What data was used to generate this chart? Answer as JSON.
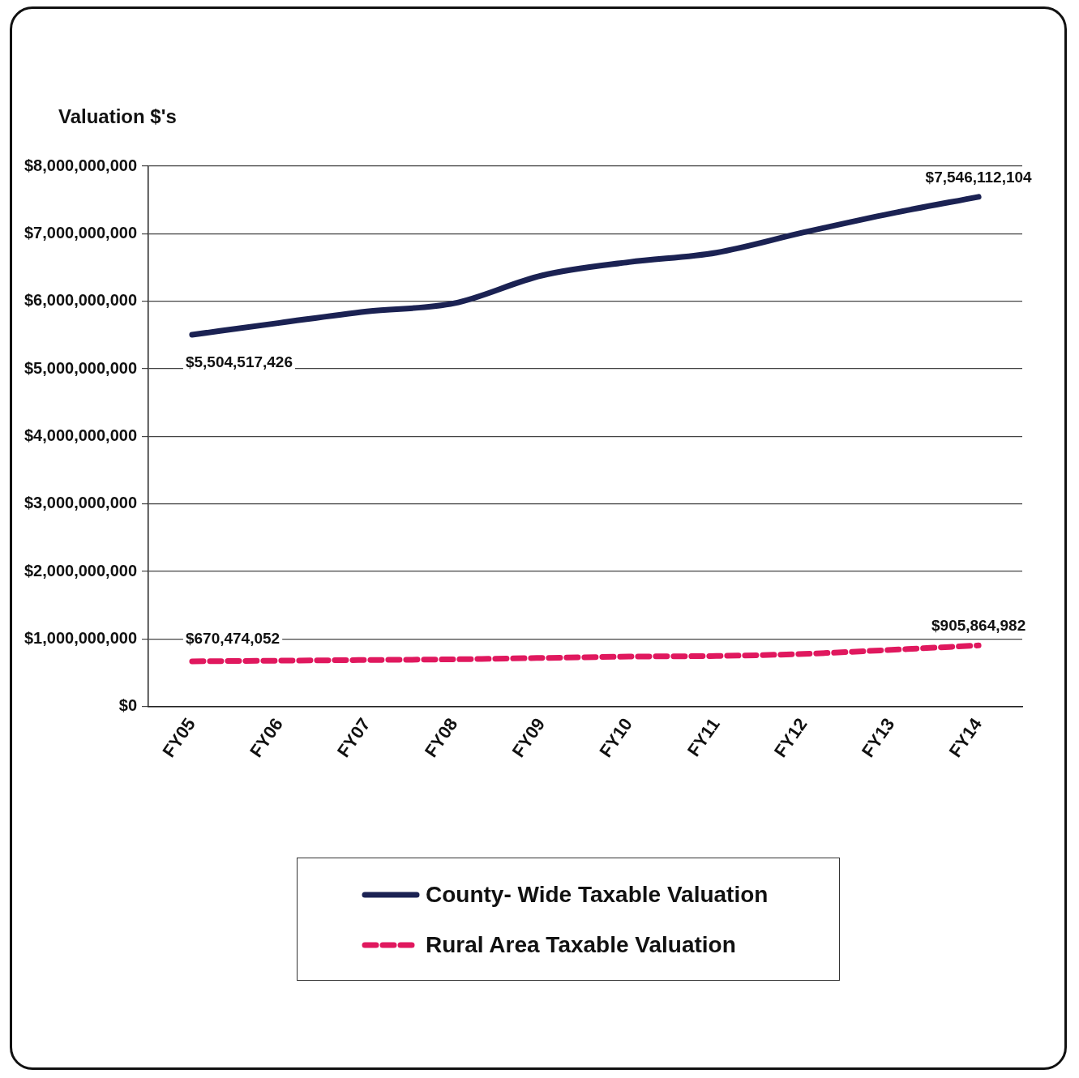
{
  "chart_data": {
    "type": "line",
    "ylabel": "Valuation $'s",
    "categories": [
      "FY05",
      "FY06",
      "FY07",
      "FY08",
      "FY09",
      "FY10",
      "FY11",
      "FY12",
      "FY13",
      "FY14"
    ],
    "series": [
      {
        "name": "County- Wide Taxable Valuation",
        "color": "#1b2253",
        "line_style": "solid",
        "values": [
          5504517426,
          5680000000,
          5850000000,
          5970000000,
          6380000000,
          6580000000,
          6720000000,
          7020000000,
          7300000000,
          7546112104
        ],
        "value_labels": [
          "$5,504,517,426",
          null,
          null,
          null,
          null,
          null,
          null,
          null,
          null,
          "$7,546,112,104"
        ]
      },
      {
        "name": "Rural Area Taxable Valuation",
        "color": "#e0185e",
        "line_style": "dashed",
        "values": [
          670474052,
          680000000,
          690000000,
          700000000,
          720000000,
          740000000,
          750000000,
          780000000,
          840000000,
          905864982
        ],
        "value_labels": [
          "$670,474,052",
          null,
          null,
          null,
          null,
          null,
          null,
          null,
          null,
          "$905,864,982"
        ]
      }
    ],
    "ylim": [
      0,
      8000000000
    ],
    "yticks": [
      {
        "value": 0,
        "label": "$0"
      },
      {
        "value": 1000000000,
        "label": "$1,000,000,000"
      },
      {
        "value": 2000000000,
        "label": "$2,000,000,000"
      },
      {
        "value": 3000000000,
        "label": "$3,000,000,000"
      },
      {
        "value": 4000000000,
        "label": "$4,000,000,000"
      },
      {
        "value": 5000000000,
        "label": "$5,000,000,000"
      },
      {
        "value": 6000000000,
        "label": "$6,000,000,000"
      },
      {
        "value": 7000000000,
        "label": "$7,000,000,000"
      },
      {
        "value": 8000000000,
        "label": "$8,000,000,000"
      }
    ],
    "grid": "y",
    "legend": "bottom",
    "marker": "none"
  }
}
